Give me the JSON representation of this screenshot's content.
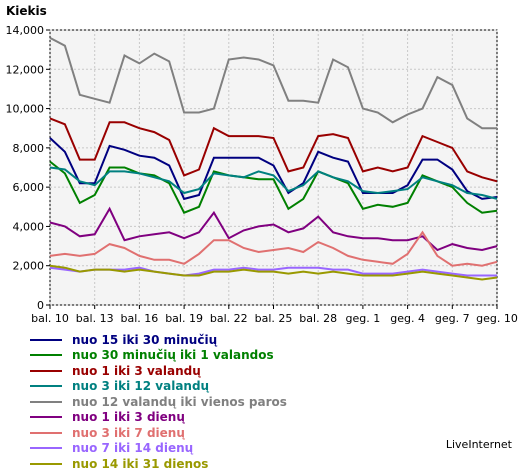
{
  "chart_data": {
    "type": "line",
    "ylabel": "Kiekis",
    "ylim": [
      0,
      14000
    ],
    "yticks": [
      "0",
      "2,000",
      "4,000",
      "6,000",
      "8,000",
      "10,000",
      "12,000",
      "14,000"
    ],
    "x_tick_labels": [
      "bal. 10",
      "bal. 13",
      "bal. 16",
      "bal. 19",
      "bal. 22",
      "bal. 25",
      "bal. 28",
      "geg. 1",
      "geg. 4",
      "geg. 7",
      "geg. 10"
    ],
    "grid": true,
    "legend_position": "bottom",
    "series": [
      {
        "name": "nuo 15 iki 30 minučių",
        "color": "#000080",
        "values": [
          8500,
          7800,
          6200,
          6200,
          8100,
          7900,
          7600,
          7500,
          7100,
          5400,
          5600,
          7500,
          7500,
          7500,
          7500,
          7100,
          5700,
          6200,
          7800,
          7500,
          7300,
          5700,
          5700,
          5700,
          6100,
          7400,
          7400,
          6900,
          5800,
          5400,
          5500
        ]
      },
      {
        "name": "nuo 30 minučių iki 1 valandos",
        "color": "#008000",
        "values": [
          7300,
          6700,
          5200,
          5600,
          7000,
          7000,
          6700,
          6600,
          6200,
          4700,
          5000,
          6800,
          6600,
          6500,
          6400,
          6400,
          4900,
          5400,
          6800,
          6500,
          6200,
          4900,
          5100,
          5000,
          5200,
          6600,
          6300,
          6000,
          5200,
          4700,
          4800
        ]
      },
      {
        "name": "nuo 1 iki 3 valandų",
        "color": "#990000",
        "values": [
          9500,
          9200,
          7400,
          7400,
          9300,
          9300,
          9000,
          8800,
          8400,
          6600,
          6900,
          9000,
          8600,
          8600,
          8600,
          8500,
          6800,
          7000,
          8600,
          8700,
          8500,
          6800,
          7000,
          6800,
          7000,
          8600,
          8300,
          8000,
          6800,
          6500,
          6300
        ]
      },
      {
        "name": "nuo 3 iki 12 valandų",
        "color": "#008080",
        "values": [
          7000,
          6900,
          6300,
          6100,
          6800,
          6800,
          6700,
          6500,
          6300,
          5700,
          5900,
          6700,
          6600,
          6500,
          6800,
          6600,
          5800,
          6100,
          6800,
          6500,
          6300,
          5800,
          5700,
          5800,
          5900,
          6500,
          6300,
          6100,
          5700,
          5600,
          5400
        ]
      },
      {
        "name": "nuo 12 valandų iki vienos paros",
        "color": "#808080",
        "values": [
          13600,
          13200,
          10700,
          10500,
          10300,
          12700,
          12300,
          12800,
          12400,
          9800,
          9800,
          10000,
          12500,
          12600,
          12500,
          12200,
          10400,
          10400,
          10300,
          12500,
          12100,
          10000,
          9800,
          9300,
          9700,
          10000,
          11600,
          11200,
          9500,
          9000,
          9000
        ]
      },
      {
        "name": "nuo 1 iki 3 dienų",
        "color": "#800080",
        "values": [
          4200,
          4000,
          3500,
          3600,
          4900,
          3300,
          3500,
          3600,
          3700,
          3400,
          3700,
          4700,
          3400,
          3800,
          4000,
          4100,
          3700,
          3900,
          4500,
          3700,
          3500,
          3400,
          3400,
          3300,
          3300,
          3500,
          2800,
          3100,
          2900,
          2800,
          3000
        ]
      },
      {
        "name": "nuo 3 iki 7 dienų",
        "color": "#e07070",
        "values": [
          2500,
          2600,
          2500,
          2600,
          3100,
          2900,
          2500,
          2300,
          2300,
          2100,
          2600,
          3300,
          3300,
          2900,
          2700,
          2800,
          2900,
          2700,
          3200,
          2900,
          2500,
          2300,
          2200,
          2100,
          2600,
          3700,
          2500,
          2000,
          2100,
          2000,
          2200
        ]
      },
      {
        "name": "nuo 7 iki 14 dienų",
        "color": "#9966ff",
        "values": [
          1900,
          1800,
          1700,
          1800,
          1800,
          1800,
          1900,
          1700,
          1600,
          1500,
          1600,
          1800,
          1800,
          1900,
          1800,
          1800,
          1900,
          1900,
          1900,
          1800,
          1800,
          1600,
          1600,
          1600,
          1700,
          1800,
          1700,
          1600,
          1500,
          1500,
          1500
        ]
      },
      {
        "name": "nuo 14 iki 31 dienos",
        "color": "#999900",
        "values": [
          2000,
          1900,
          1700,
          1800,
          1800,
          1700,
          1800,
          1700,
          1600,
          1500,
          1500,
          1700,
          1700,
          1800,
          1700,
          1700,
          1600,
          1700,
          1600,
          1700,
          1600,
          1500,
          1500,
          1500,
          1600,
          1700,
          1600,
          1500,
          1400,
          1300,
          1400
        ]
      }
    ]
  },
  "footer": {
    "brand": "LiveInternet"
  }
}
